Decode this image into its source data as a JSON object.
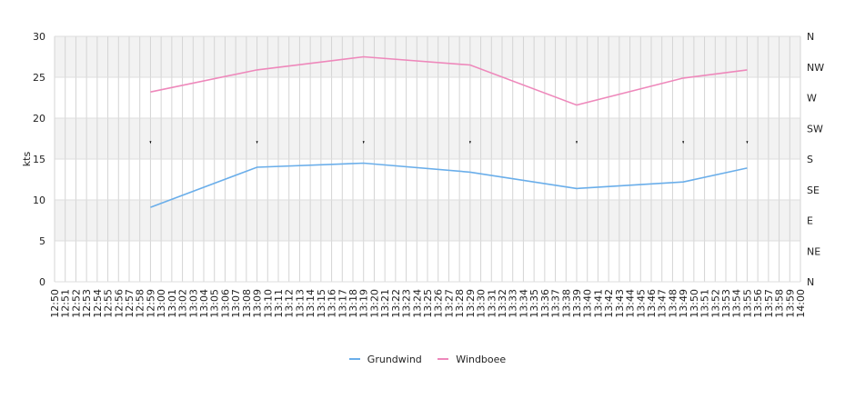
{
  "chart_data": {
    "type": "line",
    "ylabel": "kts",
    "ylim": [
      0,
      30
    ],
    "y_ticks": [
      "0",
      "5",
      "10",
      "15",
      "20",
      "25",
      "30"
    ],
    "y2_ticks": [
      "N",
      "NE",
      "E",
      "SE",
      "S",
      "SW",
      "W",
      "NW",
      "N"
    ],
    "x_ticks": [
      "12:50",
      "12:51",
      "12:52",
      "12:53",
      "12:54",
      "12:55",
      "12:56",
      "12:57",
      "12:58",
      "12:59",
      "13:00",
      "13:01",
      "13:02",
      "13:03",
      "13:04",
      "13:05",
      "13:06",
      "13:07",
      "13:08",
      "13:09",
      "13:10",
      "13:11",
      "13:12",
      "13:13",
      "13:14",
      "13:15",
      "13:16",
      "13:17",
      "13:18",
      "13:19",
      "13:20",
      "13:21",
      "13:22",
      "13:23",
      "13:24",
      "13:25",
      "13:26",
      "13:27",
      "13:28",
      "13:29",
      "13:30",
      "13:31",
      "13:32",
      "13:33",
      "13:34",
      "13:35",
      "13:36",
      "13:37",
      "13:38",
      "13:39",
      "13:40",
      "13:41",
      "13:42",
      "13:43",
      "13:44",
      "13:45",
      "13:46",
      "13:47",
      "13:48",
      "13:49",
      "13:50",
      "13:51",
      "13:52",
      "13:53",
      "13:54",
      "13:55",
      "13:56",
      "13:57",
      "13:58",
      "13:59",
      "14:00"
    ],
    "x": [
      "12:59",
      "13:09",
      "13:19",
      "13:29",
      "13:39",
      "13:49",
      "13:55"
    ],
    "series": [
      {
        "name": "Grundwind",
        "color": "#6aaeea",
        "values": [
          9.1,
          14.0,
          14.5,
          13.4,
          11.4,
          12.2,
          13.9
        ]
      },
      {
        "name": "Windboee",
        "color": "#ee88bb",
        "values": [
          23.2,
          25.9,
          27.5,
          26.5,
          21.6,
          24.9,
          25.9
        ]
      }
    ],
    "direction_markers": {
      "x": [
        "12:59",
        "13:09",
        "13:19",
        "13:29",
        "13:39",
        "13:49",
        "13:55"
      ],
      "direction": [
        "SW",
        "SW",
        "SW",
        "SW",
        "SW",
        "SW",
        "SW"
      ]
    },
    "grid": true,
    "legend_position": "bottom-center"
  }
}
